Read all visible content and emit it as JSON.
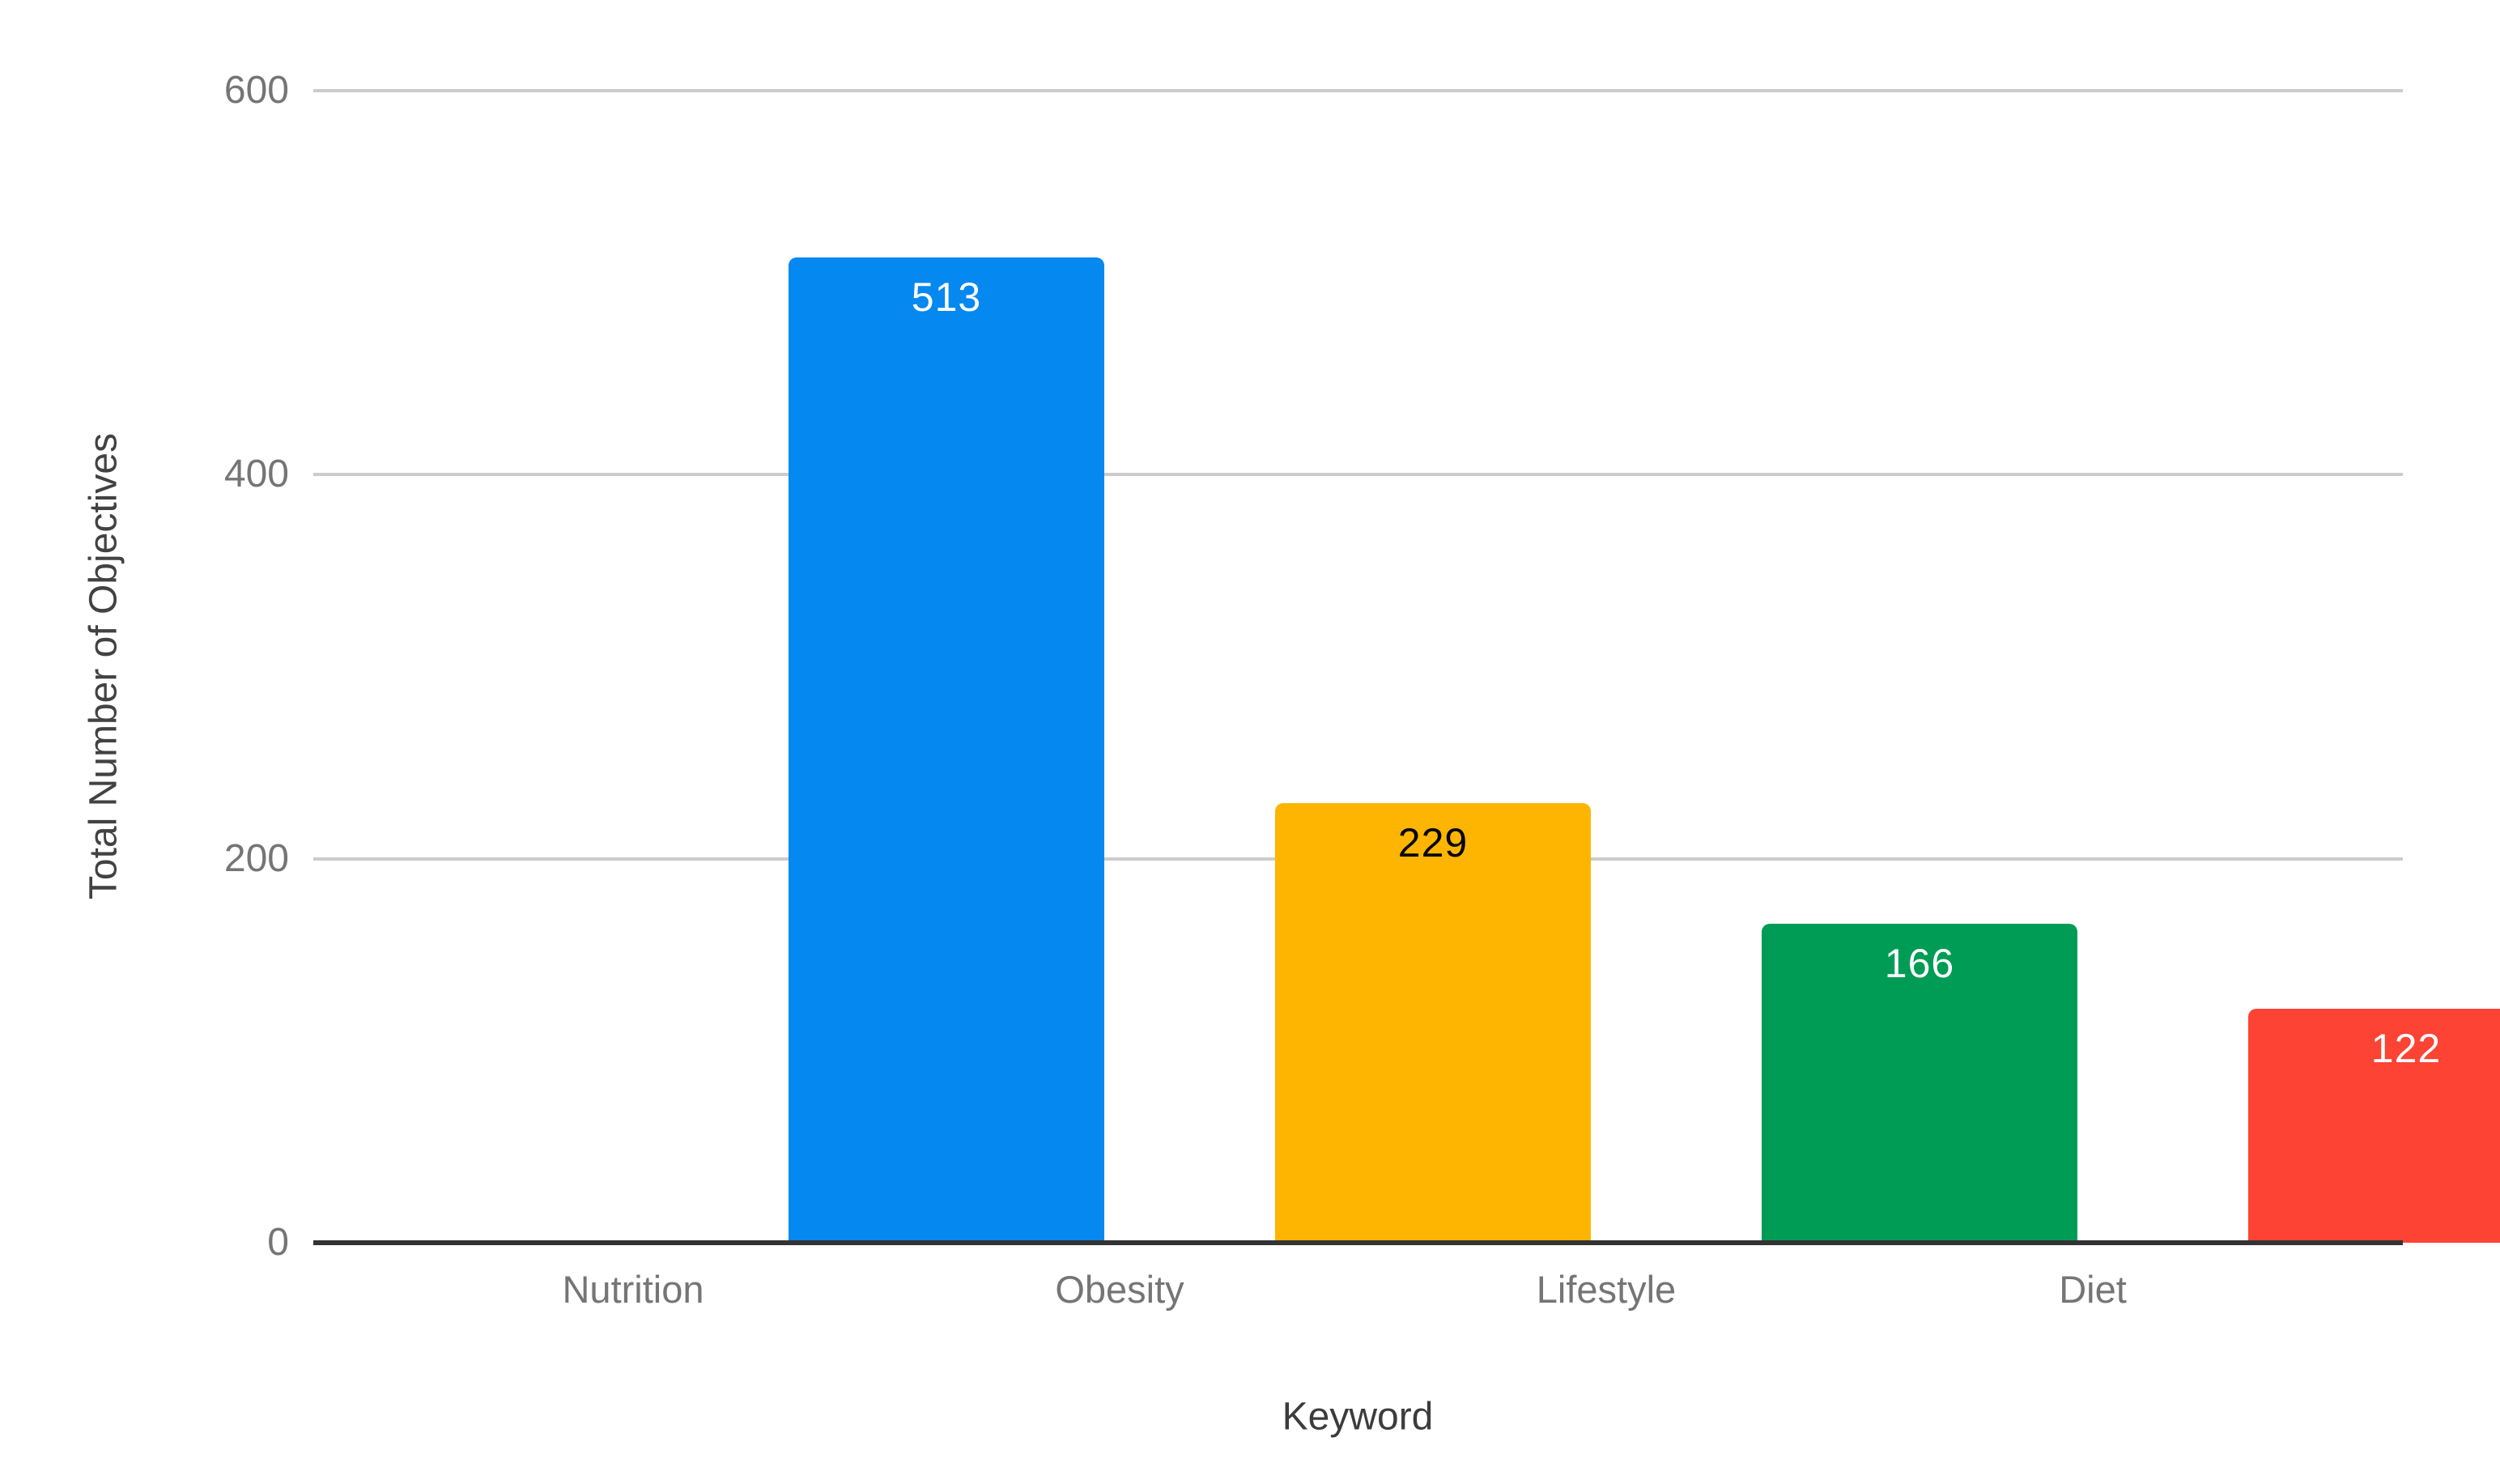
{
  "chart_data": {
    "type": "bar",
    "title": "",
    "categories": [
      "Nutrition",
      "Obesity",
      "Lifestyle",
      "Diet"
    ],
    "values": [
      513,
      229,
      166,
      122
    ],
    "series": [
      {
        "name": "Total Number of Objectives",
        "values": [
          513,
          229,
          166,
          122
        ]
      }
    ],
    "bar_colors": [
      "#0588f0",
      "#feb502",
      "#009c55",
      "#fd4334"
    ],
    "value_label_colors": [
      "#ffffff",
      "#000000",
      "#ffffff",
      "#ffffff"
    ],
    "xlabel": "Keyword",
    "ylabel": "Total Number of Objectives",
    "yticks": [
      0,
      200,
      400,
      600
    ],
    "ylim": [
      0,
      600
    ],
    "grid": true,
    "legend_position": "none",
    "data_labels": "inside-top",
    "colors": {
      "background": "#ffffff",
      "gridline": "#cccccc",
      "axis_line": "#333333",
      "tick_label": "#757575",
      "category_label": "#757575",
      "axis_title": "#3c3c3c"
    }
  }
}
